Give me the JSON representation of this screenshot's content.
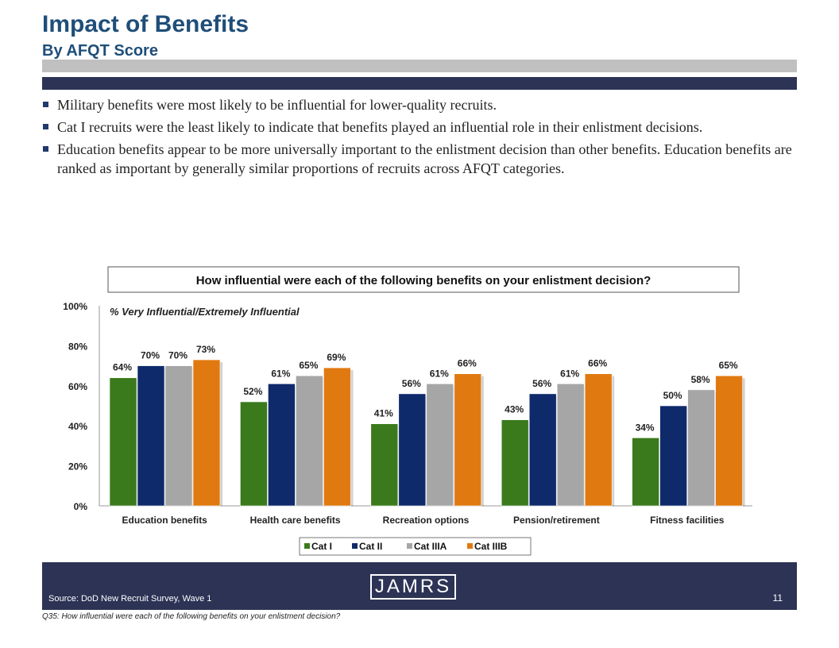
{
  "slide": {
    "title": "Impact of Benefits",
    "subtitle": "By AFQT Score",
    "bullets": [
      "Military benefits were most likely to be influential  for lower-quality recruits.",
      "Cat I recruits were the least likely to indicate that benefits played an influential  role in their enlistment decisions.",
      "Education benefits appear to be more universally important to the enlistment decision than other benefits.  Education benefits are ranked as important by generally similar proportions of recruits across AFQT categories."
    ],
    "source": "Source:  DoD New Recruit Survey, Wave 1",
    "logo_text": "JAMRS",
    "page_number": "11",
    "footnote": "Q35:  How influential were each of the following benefits on your enlistment decision?"
  },
  "colors": {
    "title": "#1f4e79",
    "footer": "#2c3355",
    "cat_i": "#3a7a1c",
    "cat_ii": "#0e2a6b",
    "cat_iiia": "#a6a6a6",
    "cat_iiib": "#e07a10"
  },
  "chart_data": {
    "type": "bar",
    "title": "How influential were each of the following benefits on your enlistment decision?",
    "annotation": "% Very Influential/Extremely  Influential",
    "categories": [
      "Education benefits",
      "Health care benefits",
      "Recreation options",
      "Pension/retirement",
      "Fitness facilities"
    ],
    "series": [
      {
        "name": "Cat I",
        "values": [
          64,
          52,
          41,
          43,
          34
        ],
        "color": "#3a7a1c"
      },
      {
        "name": "Cat II",
        "values": [
          70,
          61,
          56,
          56,
          50
        ],
        "color": "#0e2a6b"
      },
      {
        "name": "Cat IIIA",
        "values": [
          70,
          65,
          61,
          61,
          58
        ],
        "color": "#a6a6a6"
      },
      {
        "name": "Cat IIIB",
        "values": [
          73,
          69,
          66,
          66,
          65
        ],
        "color": "#e07a10"
      }
    ],
    "ylim": [
      0,
      100
    ],
    "yticks": [
      0,
      20,
      40,
      60,
      80,
      100
    ],
    "tick_labels": [
      "0%",
      "20%",
      "40%",
      "60%",
      "80%",
      "100%"
    ],
    "value_suffix": "%",
    "grid": false,
    "legend": "bottom"
  }
}
